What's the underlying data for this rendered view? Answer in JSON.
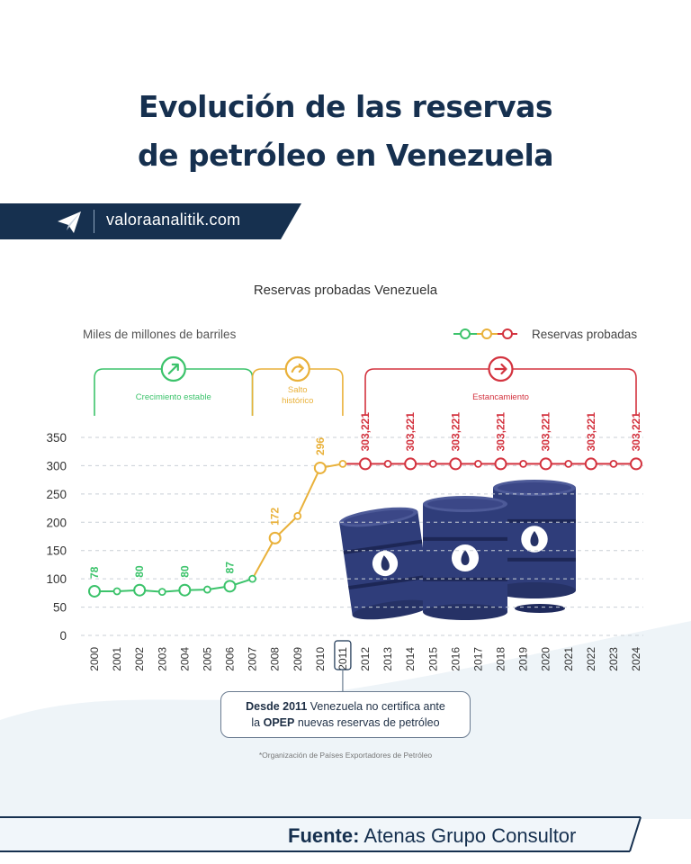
{
  "header": {
    "title_line1": "Evolución de las reservas",
    "title_line2": "de petróleo en Venezuela"
  },
  "brand": {
    "site": "valoraanalitik.com",
    "band_color": "#16304f"
  },
  "note": {
    "bold1": "Desde 2011",
    "text1": " Venezuela no certifica ante",
    "text2a": "la ",
    "bold2": "OPEP",
    "text2b": " nuevas reservas de petróleo"
  },
  "footnote": "*Organización de Países Exportadores de Petróleo",
  "source": {
    "label": "Fuente:",
    "name": " Atenas Grupo Consultor"
  },
  "chart_data": {
    "type": "line",
    "title": "Reservas probadas Venezuela",
    "ylabel": "Miles de millones de barriles",
    "legend": {
      "label": "Reservas probadas",
      "placement": "top-right"
    },
    "ylim": [
      0,
      350
    ],
    "yticks": [
      0,
      50,
      100,
      150,
      200,
      250,
      300,
      350
    ],
    "grid": "horizontal-dashed",
    "x": [
      "2000",
      "2001",
      "2002",
      "2003",
      "2004",
      "2005",
      "2006",
      "2007",
      "2008",
      "2009",
      "2010",
      "2011",
      "2012",
      "2013",
      "2014",
      "2015",
      "2016",
      "2017",
      "2018",
      "2019",
      "2020",
      "2021",
      "2022",
      "2023",
      "2024"
    ],
    "values": [
      78,
      78,
      80,
      77,
      80,
      81,
      87,
      100,
      172,
      211,
      296,
      303.221,
      303.221,
      303.221,
      303.221,
      303.221,
      303.221,
      303.221,
      303.221,
      303.221,
      303.221,
      303.221,
      303.221,
      303.221,
      303.221
    ],
    "data_labels": [
      {
        "index": 0,
        "text": "78"
      },
      {
        "index": 2,
        "text": "80"
      },
      {
        "index": 4,
        "text": "80"
      },
      {
        "index": 6,
        "text": "87"
      },
      {
        "index": 8,
        "text": "172"
      },
      {
        "index": 10,
        "text": "296"
      },
      {
        "index": 12,
        "text": "303,221"
      },
      {
        "index": 14,
        "text": "303,221"
      },
      {
        "index": 16,
        "text": "303,221"
      },
      {
        "index": 18,
        "text": "303,221"
      },
      {
        "index": 20,
        "text": "303,221"
      },
      {
        "index": 22,
        "text": "303,221"
      },
      {
        "index": 24,
        "text": "303,221"
      }
    ],
    "phases": [
      {
        "label": "Crecimiento estable",
        "start": 0,
        "end": 7,
        "color": "#3cc36b",
        "icon": "arrow-up-right-icon"
      },
      {
        "label": "Salto histórico",
        "start": 7,
        "end": 11,
        "color": "#e9b13a",
        "icon": "curve-arrow-icon"
      },
      {
        "label": "Estancamiento",
        "start": 12,
        "end": 24,
        "color": "#d3333f",
        "icon": "arrow-right-icon"
      }
    ],
    "highlight_x": "2011"
  }
}
